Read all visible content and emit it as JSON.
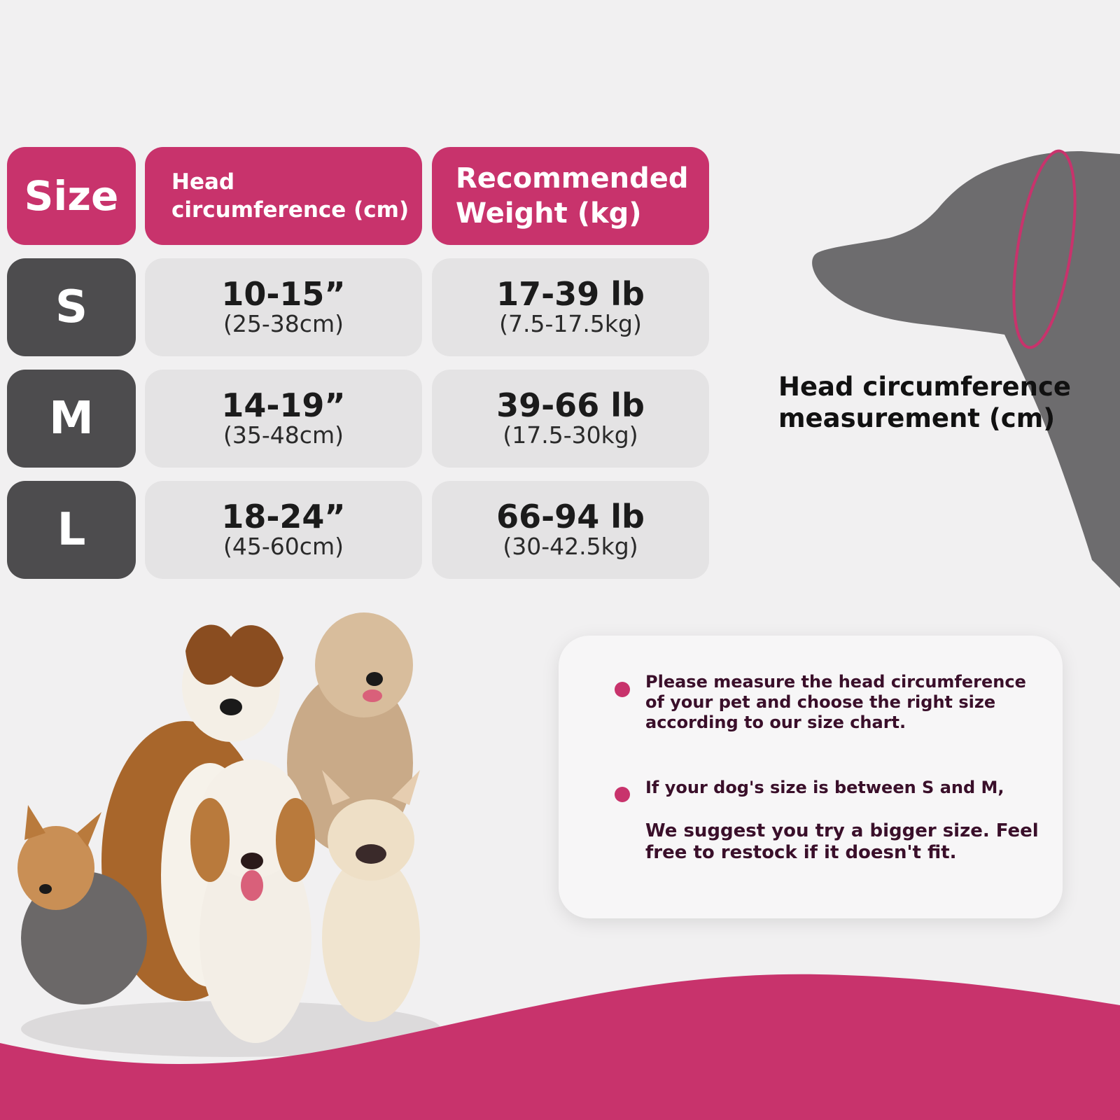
{
  "colors": {
    "accent": "#c8336c",
    "size_cell": "#4d4c4e",
    "value_cell": "#e4e3e4",
    "background": "#f1f0f1"
  },
  "table": {
    "headers": {
      "size": "Size",
      "head_line1": "Head",
      "head_line2": "circumference (cm)",
      "weight_line1": "Recommended",
      "weight_line2": "Weight (kg)"
    },
    "rows": [
      {
        "size": "S",
        "head_in": "10-15”",
        "head_cm": "(25-38cm)",
        "weight_lb": "17-39 lb",
        "weight_kg": "(7.5-17.5kg)"
      },
      {
        "size": "M",
        "head_in": "14-19”",
        "head_cm": "(35-48cm)",
        "weight_lb": "39-66 lb",
        "weight_kg": "(17.5-30kg)"
      },
      {
        "size": "L",
        "head_in": "18-24”",
        "head_cm": "(45-60cm)",
        "weight_lb": "66-94 lb",
        "weight_kg": "(30-42.5kg)"
      }
    ]
  },
  "measurement": {
    "line1": "Head circumference",
    "line2": "measurement (cm)",
    "illustration": "dog-head-silhouette-icon"
  },
  "notes": {
    "note1_l1": "Please measure the head circumference",
    "note1_l2": "of your pet and choose the right size",
    "note1_l3": "according to our size chart.",
    "note2_l1": "If your dog's size is between S and M,",
    "note2_l2": "We suggest you try a bigger size. Feel",
    "note2_l3": "free to restock if it doesn't fit."
  },
  "photo": {
    "subject": "group-of-dogs-photo"
  }
}
